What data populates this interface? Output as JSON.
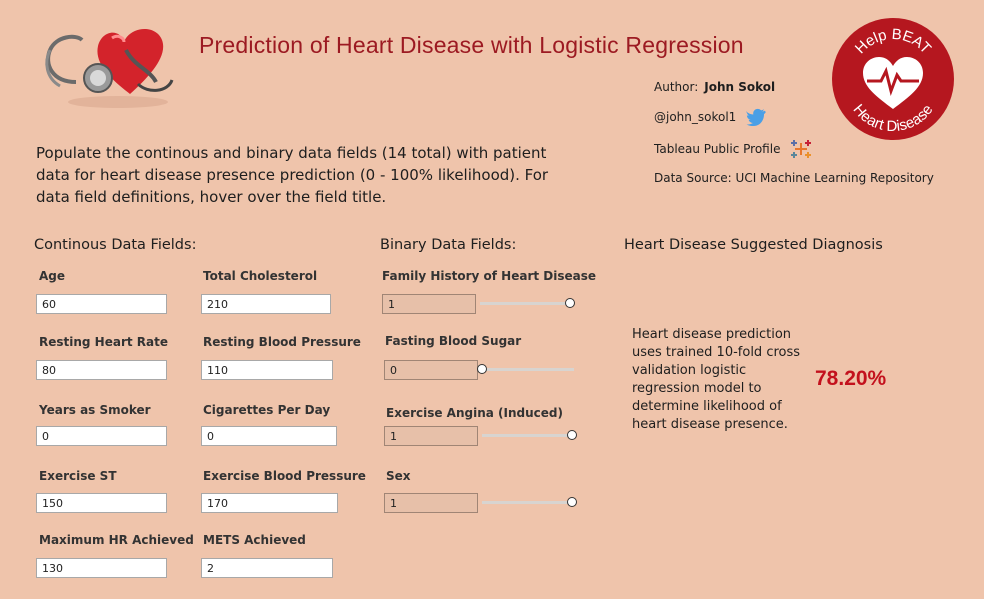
{
  "header": {
    "title": "Prediction of Heart Disease with Logistic Regression",
    "intro": "Populate the continous and binary data fields (14 total) with patient data for heart disease presence prediction (0 - 100% likelihood). For data field definitions, hover over the field title."
  },
  "meta": {
    "author_label": "Author:",
    "author_name": "John Sokol",
    "twitter_handle": "@john_sokol1",
    "tableau_profile": "Tableau Public Profile",
    "data_source": "Data Source: UCI Machine Learning Repository"
  },
  "logo": {
    "top_text": "Help BEAT",
    "bottom_text": "Heart Disease",
    "color": "#b5171f"
  },
  "continuous": {
    "heading": "Continous Data Fields:",
    "fields": [
      {
        "label": "Age",
        "value": "60"
      },
      {
        "label": "Total Cholesterol",
        "value": "210"
      },
      {
        "label": "Resting Heart Rate",
        "value": "80"
      },
      {
        "label": "Resting Blood Pressure",
        "value": "110"
      },
      {
        "label": "Years as Smoker",
        "value": "0"
      },
      {
        "label": "Cigarettes Per Day",
        "value": "0"
      },
      {
        "label": "Exercise ST",
        "value": "150"
      },
      {
        "label": "Exercise Blood Pressure",
        "value": "170"
      },
      {
        "label": "Maximum HR Achieved",
        "value": "130"
      },
      {
        "label": "METS Achieved",
        "value": "2"
      }
    ]
  },
  "binary": {
    "heading": "Binary Data Fields:",
    "fields": [
      {
        "label": "Family History of Heart Disease",
        "value": "1",
        "level": 1
      },
      {
        "label": "Fasting Blood Sugar",
        "value": "0",
        "level": 0
      },
      {
        "label": "Exercise Angina (Induced)",
        "value": "1",
        "level": 1
      },
      {
        "label": "Sex",
        "value": "1",
        "level": 1
      }
    ]
  },
  "diagnosis": {
    "heading": "Heart Disease Suggested Diagnosis",
    "description": "Heart disease prediction uses trained 10-fold cross validation logistic regression model to determine likelihood of heart disease presence.",
    "percentage": "78.20%",
    "percentage_color": "#c3111d"
  },
  "colors": {
    "background": "#efc4ab",
    "title": "#9c1a22",
    "twitter": "#4a9fe6"
  },
  "icons": {
    "hero_image": "heart-stethoscope-icon",
    "twitter": "twitter-bird-icon",
    "tableau": "tableau-plus-icon",
    "logo_pulse": "heart-pulse-icon"
  }
}
